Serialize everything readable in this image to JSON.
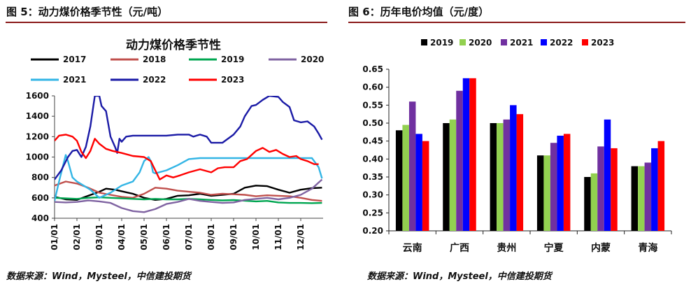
{
  "left_panel": {
    "caption": "图 5：动力煤价格季节性（元/吨）",
    "source": "数据来源：Wind，Mysteel，中信建投期货"
  },
  "right_panel": {
    "caption": "图 6：历年电价均值（元/度）",
    "source": "数据来源：Wind，Mysteel，中信建投期货"
  },
  "chart_data": [
    {
      "type": "line",
      "title": "动力煤价格季节性",
      "ylim": [
        400,
        1600
      ],
      "yticks": [
        400,
        600,
        800,
        1000,
        1200,
        1400,
        1600
      ],
      "xticks": [
        "01/01",
        "02/01",
        "03/01",
        "04/01",
        "05/01",
        "06/01",
        "07/01",
        "08/01",
        "09/01",
        "10/01",
        "11/01",
        "12/01"
      ],
      "x_domain_months": [
        1,
        13
      ],
      "grid": false,
      "legend_position": "top",
      "series": [
        {
          "name": "2017",
          "color": "#000000",
          "points": [
            [
              1,
              610
            ],
            [
              1.5,
              585
            ],
            [
              2,
              580
            ],
            [
              2.5,
              620
            ],
            [
              3,
              660
            ],
            [
              3.3,
              690
            ],
            [
              3.7,
              680
            ],
            [
              4,
              665
            ],
            [
              4.5,
              640
            ],
            [
              5,
              600
            ],
            [
              5.5,
              580
            ],
            [
              6,
              590
            ],
            [
              6.5,
              620
            ],
            [
              7,
              625
            ],
            [
              7.5,
              640
            ],
            [
              8,
              620
            ],
            [
              8.5,
              630
            ],
            [
              9,
              640
            ],
            [
              9.5,
              700
            ],
            [
              10,
              720
            ],
            [
              10.5,
              715
            ],
            [
              11,
              680
            ],
            [
              11.5,
              650
            ],
            [
              12,
              680
            ],
            [
              12.5,
              695
            ],
            [
              12.95,
              700
            ]
          ]
        },
        {
          "name": "2018",
          "color": "#c0504d",
          "points": [
            [
              1,
              720
            ],
            [
              1.5,
              760
            ],
            [
              2,
              740
            ],
            [
              2.5,
              700
            ],
            [
              3,
              650
            ],
            [
              3.5,
              630
            ],
            [
              4,
              610
            ],
            [
              4.5,
              600
            ],
            [
              5,
              640
            ],
            [
              5.5,
              700
            ],
            [
              6,
              690
            ],
            [
              6.5,
              670
            ],
            [
              7,
              660
            ],
            [
              7.5,
              650
            ],
            [
              8,
              630
            ],
            [
              8.5,
              640
            ],
            [
              9,
              635
            ],
            [
              9.5,
              630
            ],
            [
              10,
              615
            ],
            [
              10.5,
              625
            ],
            [
              11,
              620
            ],
            [
              11.5,
              615
            ],
            [
              12,
              600
            ],
            [
              12.5,
              580
            ],
            [
              12.95,
              570
            ]
          ]
        },
        {
          "name": "2019",
          "color": "#00a651",
          "points": [
            [
              1,
              600
            ],
            [
              1.5,
              595
            ],
            [
              2,
              590
            ],
            [
              2.5,
              600
            ],
            [
              3,
              605
            ],
            [
              3.5,
              600
            ],
            [
              4,
              595
            ],
            [
              4.5,
              590
            ],
            [
              5,
              585
            ],
            [
              5.5,
              590
            ],
            [
              6,
              585
            ],
            [
              6.5,
              585
            ],
            [
              7,
              590
            ],
            [
              7.5,
              585
            ],
            [
              8,
              580
            ],
            [
              8.5,
              575
            ],
            [
              9,
              578
            ],
            [
              9.5,
              572
            ],
            [
              10,
              565
            ],
            [
              10.5,
              570
            ],
            [
              11,
              555
            ],
            [
              11.5,
              550
            ],
            [
              12,
              550
            ],
            [
              12.5,
              548
            ],
            [
              12.95,
              550
            ]
          ]
        },
        {
          "name": "2020",
          "color": "#8064a2",
          "points": [
            [
              1,
              560
            ],
            [
              1.5,
              555
            ],
            [
              2,
              560
            ],
            [
              2.5,
              575
            ],
            [
              3,
              565
            ],
            [
              3.5,
              550
            ],
            [
              4,
              500
            ],
            [
              4.5,
              470
            ],
            [
              5,
              460
            ],
            [
              5.5,
              490
            ],
            [
              6,
              540
            ],
            [
              6.5,
              560
            ],
            [
              7,
              590
            ],
            [
              7.5,
              570
            ],
            [
              8,
              560
            ],
            [
              8.5,
              550
            ],
            [
              9,
              555
            ],
            [
              9.5,
              580
            ],
            [
              10,
              590
            ],
            [
              10.5,
              600
            ],
            [
              11,
              585
            ],
            [
              11.5,
              600
            ],
            [
              12,
              630
            ],
            [
              12.5,
              690
            ],
            [
              12.95,
              780
            ]
          ]
        },
        {
          "name": "2021",
          "color": "#33b5e5",
          "points": [
            [
              1,
              570
            ],
            [
              1.2,
              760
            ],
            [
              1.5,
              1020
            ],
            [
              1.6,
              960
            ],
            [
              1.8,
              800
            ],
            [
              2,
              760
            ],
            [
              2.3,
              720
            ],
            [
              2.6,
              680
            ],
            [
              3,
              600
            ],
            [
              3.5,
              650
            ],
            [
              4,
              720
            ],
            [
              4.5,
              760
            ],
            [
              4.8,
              850
            ],
            [
              5,
              960
            ],
            [
              5.2,
              1000
            ],
            [
              5.3,
              960
            ],
            [
              5.4,
              850
            ],
            [
              5.5,
              840
            ],
            [
              6,
              870
            ],
            [
              6.5,
              920
            ],
            [
              7,
              980
            ],
            [
              7.5,
              990
            ],
            [
              8,
              990
            ],
            [
              9,
              990
            ],
            [
              10,
              990
            ],
            [
              11,
              990
            ],
            [
              12,
              990
            ],
            [
              12.5,
              990
            ],
            [
              12.8,
              900
            ],
            [
              12.95,
              790
            ]
          ]
        },
        {
          "name": "2022",
          "color": "#1a1aa6",
          "points": [
            [
              1,
              780
            ],
            [
              1.3,
              870
            ],
            [
              1.6,
              1000
            ],
            [
              1.8,
              1060
            ],
            [
              2,
              1070
            ],
            [
              2.2,
              1000
            ],
            [
              2.4,
              1100
            ],
            [
              2.6,
              1300
            ],
            [
              2.8,
              1600
            ],
            [
              3,
              1600
            ],
            [
              3.1,
              1500
            ],
            [
              3.3,
              1450
            ],
            [
              3.5,
              1200
            ],
            [
              3.7,
              1100
            ],
            [
              3.8,
              1040
            ],
            [
              3.9,
              1180
            ],
            [
              4,
              1150
            ],
            [
              4.2,
              1200
            ],
            [
              4.5,
              1210
            ],
            [
              5,
              1210
            ],
            [
              5.5,
              1210
            ],
            [
              6,
              1210
            ],
            [
              6.5,
              1220
            ],
            [
              7,
              1220
            ],
            [
              7.2,
              1200
            ],
            [
              7.5,
              1220
            ],
            [
              7.8,
              1200
            ],
            [
              8,
              1140
            ],
            [
              8.5,
              1140
            ],
            [
              9,
              1220
            ],
            [
              9.3,
              1300
            ],
            [
              9.5,
              1400
            ],
            [
              9.8,
              1500
            ],
            [
              10,
              1510
            ],
            [
              10.3,
              1560
            ],
            [
              10.6,
              1600
            ],
            [
              11,
              1590
            ],
            [
              11.2,
              1540
            ],
            [
              11.5,
              1490
            ],
            [
              11.7,
              1360
            ],
            [
              12,
              1340
            ],
            [
              12.3,
              1350
            ],
            [
              12.6,
              1300
            ],
            [
              12.8,
              1230
            ],
            [
              12.95,
              1170
            ]
          ]
        },
        {
          "name": "2023",
          "color": "#ff0000",
          "points": [
            [
              1,
              1160
            ],
            [
              1.2,
              1210
            ],
            [
              1.5,
              1220
            ],
            [
              1.8,
              1200
            ],
            [
              2,
              1160
            ],
            [
              2.2,
              1050
            ],
            [
              2.4,
              990
            ],
            [
              2.6,
              1060
            ],
            [
              2.8,
              1180
            ],
            [
              3,
              1130
            ],
            [
              3.3,
              1080
            ],
            [
              3.6,
              1060
            ],
            [
              4,
              1040
            ],
            [
              4.5,
              1010
            ],
            [
              5,
              1000
            ],
            [
              5.3,
              960
            ],
            [
              5.5,
              870
            ],
            [
              5.7,
              780
            ],
            [
              6,
              820
            ],
            [
              6.3,
              800
            ],
            [
              6.6,
              820
            ],
            [
              7,
              850
            ],
            [
              7.5,
              880
            ],
            [
              8,
              850
            ],
            [
              8.3,
              890
            ],
            [
              8.6,
              900
            ],
            [
              9,
              900
            ],
            [
              9.3,
              960
            ],
            [
              9.6,
              980
            ],
            [
              10,
              1060
            ],
            [
              10.3,
              1090
            ],
            [
              10.6,
              1050
            ],
            [
              10.9,
              1070
            ],
            [
              11.2,
              1030
            ],
            [
              11.5,
              1000
            ],
            [
              11.8,
              1010
            ],
            [
              12,
              980
            ],
            [
              12.3,
              960
            ],
            [
              12.6,
              930
            ],
            [
              12.8,
              930
            ]
          ]
        }
      ]
    },
    {
      "type": "bar",
      "categories": [
        "云南",
        "广西",
        "贵州",
        "宁夏",
        "内蒙",
        "青海"
      ],
      "ylim": [
        0.2,
        0.65
      ],
      "yticks": [
        "0.20",
        "0.25",
        "0.30",
        "0.35",
        "0.40",
        "0.45",
        "0.50",
        "0.55",
        "0.60",
        "0.65"
      ],
      "grid": false,
      "legend_position": "top",
      "series": [
        {
          "name": "2019",
          "color": "#000000",
          "values": [
            0.48,
            0.5,
            0.5,
            0.41,
            0.35,
            0.38
          ]
        },
        {
          "name": "2020",
          "color": "#92d050",
          "values": [
            0.495,
            0.51,
            0.5,
            0.41,
            0.36,
            0.38
          ]
        },
        {
          "name": "2021",
          "color": "#7030a0",
          "values": [
            0.56,
            0.59,
            0.51,
            0.445,
            0.435,
            0.39
          ]
        },
        {
          "name": "2022",
          "color": "#0000ff",
          "values": [
            0.47,
            0.625,
            0.55,
            0.465,
            0.51,
            0.43
          ]
        },
        {
          "name": "2023",
          "color": "#ff0000",
          "values": [
            0.45,
            0.625,
            0.525,
            0.47,
            0.43,
            0.45
          ]
        }
      ]
    }
  ]
}
